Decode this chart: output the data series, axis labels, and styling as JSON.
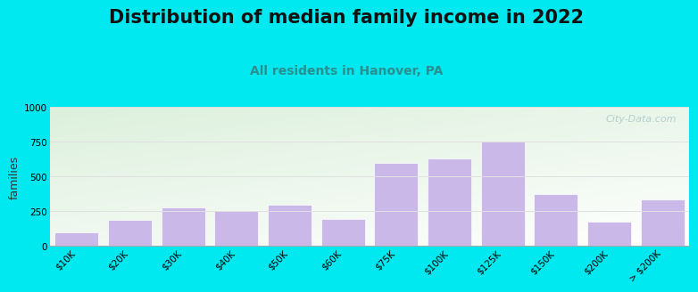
{
  "title": "Distribution of median family income in 2022",
  "subtitle": "All residents in Hanover, PA",
  "ylabel": "families",
  "categories": [
    "$10K",
    "$20K",
    "$30K",
    "$40K",
    "$50K",
    "$60K",
    "$75K",
    "$100K",
    "$125K",
    "$150K",
    "$200K",
    "> $200K"
  ],
  "values": [
    100,
    190,
    280,
    255,
    300,
    195,
    600,
    630,
    750,
    375,
    175,
    335
  ],
  "bar_color": "#c9b8e8",
  "bar_edgecolor": "#c9b8e8",
  "ylim": [
    0,
    1000
  ],
  "yticks": [
    0,
    250,
    500,
    750,
    1000
  ],
  "bg_outer": "#00e8f0",
  "title_fontsize": 15,
  "subtitle_fontsize": 10,
  "subtitle_color": "#2a8f8f",
  "watermark": "City-Data.com",
  "watermark_color": "#aac8c8",
  "grid_color": "#e0e0e0",
  "tick_fontsize": 7.5
}
